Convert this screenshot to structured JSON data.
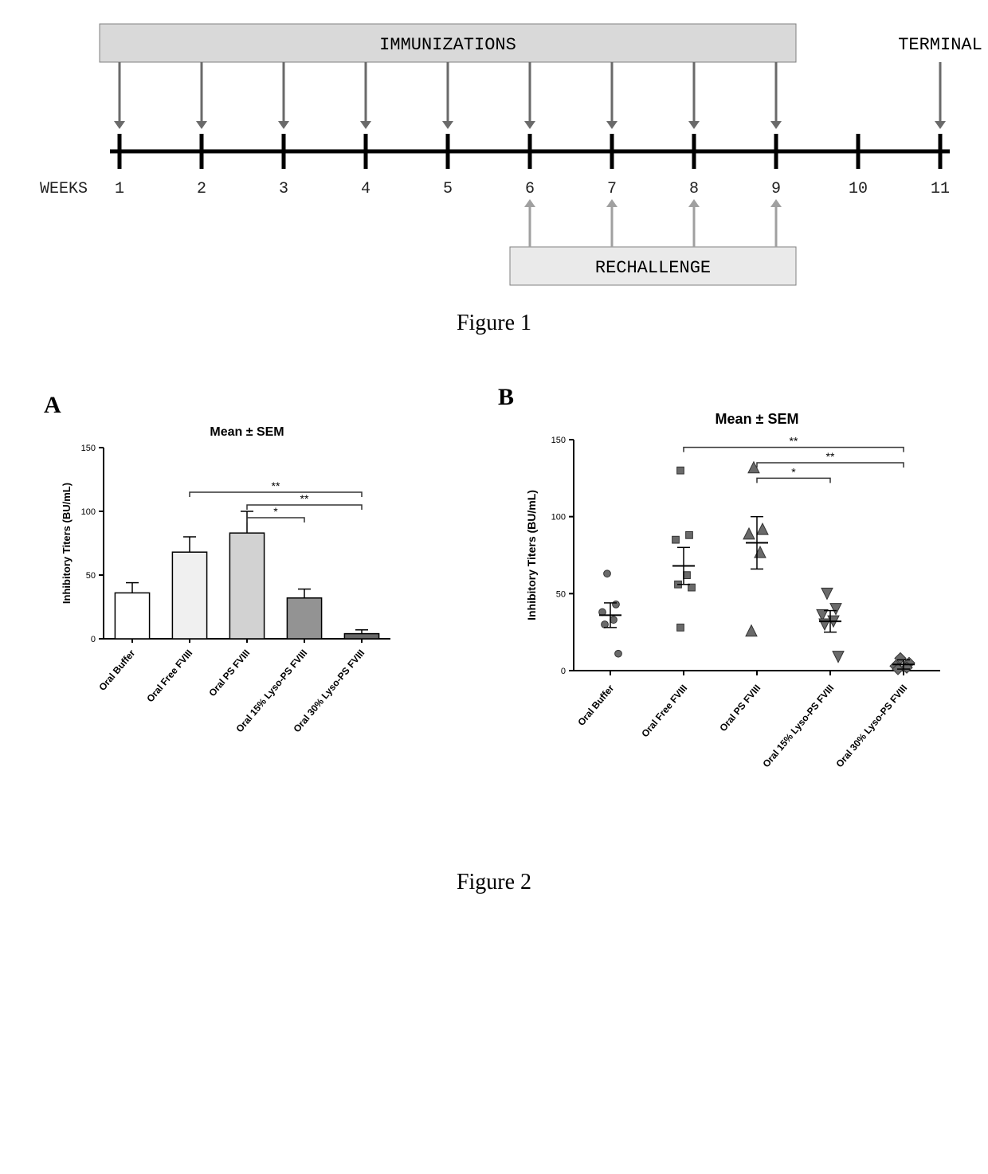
{
  "figure1": {
    "caption": "Figure 1",
    "weeks_label": "WEEKS",
    "immunizations_label": "IMMUNIZATIONS",
    "rechallenge_label": "RECHALLENGE",
    "terminal_label": "TERMINAL",
    "week_ticks": [
      1,
      2,
      3,
      4,
      5,
      6,
      7,
      8,
      9,
      10,
      11
    ],
    "immunization_weeks": [
      1,
      2,
      3,
      4,
      5,
      6,
      7,
      8,
      9
    ],
    "rechallenge_weeks": [
      6,
      7,
      8,
      9
    ],
    "terminal_week": 11,
    "colors": {
      "axis": "#000000",
      "arrow": "#6a6a6a",
      "immun_box_fill": "#d9d9d9",
      "immun_box_stroke": "#808080",
      "rechal_box_fill": "#eaeaea",
      "rechal_box_stroke": "#808080",
      "tick_label": "#222222"
    },
    "font": {
      "tick_size": 20,
      "label_size": 22
    }
  },
  "figure2": {
    "caption": "Figure 2",
    "title": "Mean ± SEM",
    "y_label": "Inhibitory Titers (BU/mL)",
    "categories": [
      "Oral Buffer",
      "Oral Free FVIII",
      "Oral PS FVIII",
      "Oral 15% Lyso-PS FVIII",
      "Oral 30% Lyso-PS FVIII"
    ],
    "panelA": {
      "label": "A",
      "type": "bar",
      "means": [
        36,
        68,
        83,
        32,
        4
      ],
      "sems": [
        8,
        12,
        17,
        7,
        3
      ],
      "bar_fills": [
        "#ffffff",
        "#f0f0f0",
        "#d2d2d2",
        "#939393",
        "#696969"
      ],
      "bar_stroke": "#000000",
      "ylim": [
        0,
        150
      ],
      "ytick_step": 50,
      "sig_brackets": [
        {
          "from": 1,
          "to": 4,
          "y": 115,
          "label": "**"
        },
        {
          "from": 2,
          "to": 4,
          "y": 105,
          "label": "**"
        },
        {
          "from": 2,
          "to": 3,
          "y": 95,
          "label": "*"
        }
      ]
    },
    "panelB": {
      "label": "B",
      "type": "scatter",
      "title": "Mean ± SEM",
      "ylim": [
        0,
        150
      ],
      "ytick_step": 50,
      "means": [
        36,
        68,
        83,
        32,
        4
      ],
      "sems": [
        8,
        12,
        17,
        7,
        3
      ],
      "points": [
        [
          63,
          43,
          38,
          33,
          30,
          11
        ],
        [
          130,
          88,
          85,
          62,
          56,
          54,
          28
        ],
        [
          132,
          92,
          89,
          77,
          26
        ],
        [
          50,
          40,
          36,
          32,
          30,
          9
        ],
        [
          8,
          5,
          3,
          2,
          1
        ]
      ],
      "markers": [
        "circle",
        "square",
        "triangle-up",
        "triangle-down",
        "diamond"
      ],
      "marker_color": "#6a6a6a",
      "marker_size": 7,
      "sig_brackets": [
        {
          "from": 1,
          "to": 4,
          "y": 145,
          "label": "**"
        },
        {
          "from": 2,
          "to": 4,
          "y": 135,
          "label": "**"
        },
        {
          "from": 2,
          "to": 3,
          "y": 125,
          "label": "*"
        }
      ]
    },
    "colors": {
      "axis": "#000000",
      "text": "#000000",
      "error_bar": "#000000",
      "sig_line": "#333333"
    },
    "font": {
      "title_size": 16,
      "axis_label_size": 13,
      "tick_size": 11,
      "cat_size": 12,
      "sig_size": 14,
      "panel_label_size": 30
    }
  }
}
